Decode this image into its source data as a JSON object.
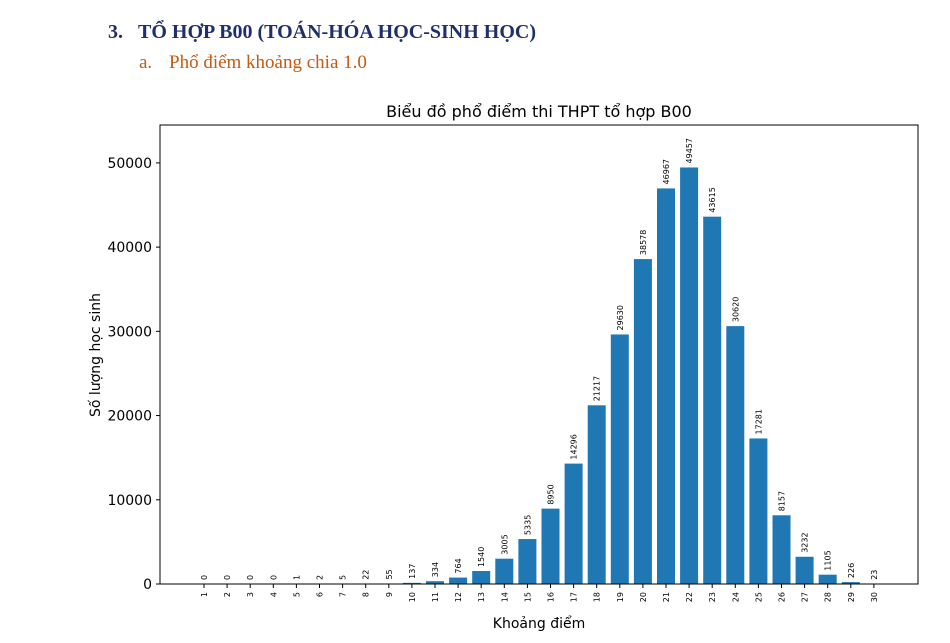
{
  "section": {
    "number": "3.",
    "title": "TỔ HỢP B00 (TOÁN-HÓA HỌC-SINH HỌC)"
  },
  "subsection": {
    "number": "a.",
    "title": "Phổ điểm khoảng chia 1.0"
  },
  "colors": {
    "bar": "#1f77b4",
    "heading": "#1f2f6b",
    "subheading": "#c55a11"
  },
  "chart_data": {
    "type": "bar",
    "title": "Biểu đồ phổ điểm thi THPT tổ hợp B00",
    "xlabel": "Khoảng điểm",
    "ylabel": "Số lượng học sinh",
    "categories": [
      "1",
      "2",
      "3",
      "4",
      "5",
      "6",
      "7",
      "8",
      "9",
      "10",
      "11",
      "12",
      "13",
      "14",
      "15",
      "16",
      "17",
      "18",
      "19",
      "20",
      "21",
      "22",
      "23",
      "24",
      "25",
      "26",
      "27",
      "28",
      "29",
      "30"
    ],
    "values": [
      0,
      0,
      0,
      0,
      1,
      2,
      5,
      22,
      55,
      137,
      334,
      764,
      1540,
      3005,
      5335,
      8950,
      14296,
      21217,
      29630,
      38578,
      46967,
      49457,
      43615,
      30620,
      17281,
      8157,
      3232,
      1105,
      226,
      23
    ],
    "ylim": [
      0,
      54500
    ],
    "yticks": [
      0,
      10000,
      20000,
      30000,
      40000,
      50000
    ],
    "grid": false,
    "data_labels": true
  }
}
